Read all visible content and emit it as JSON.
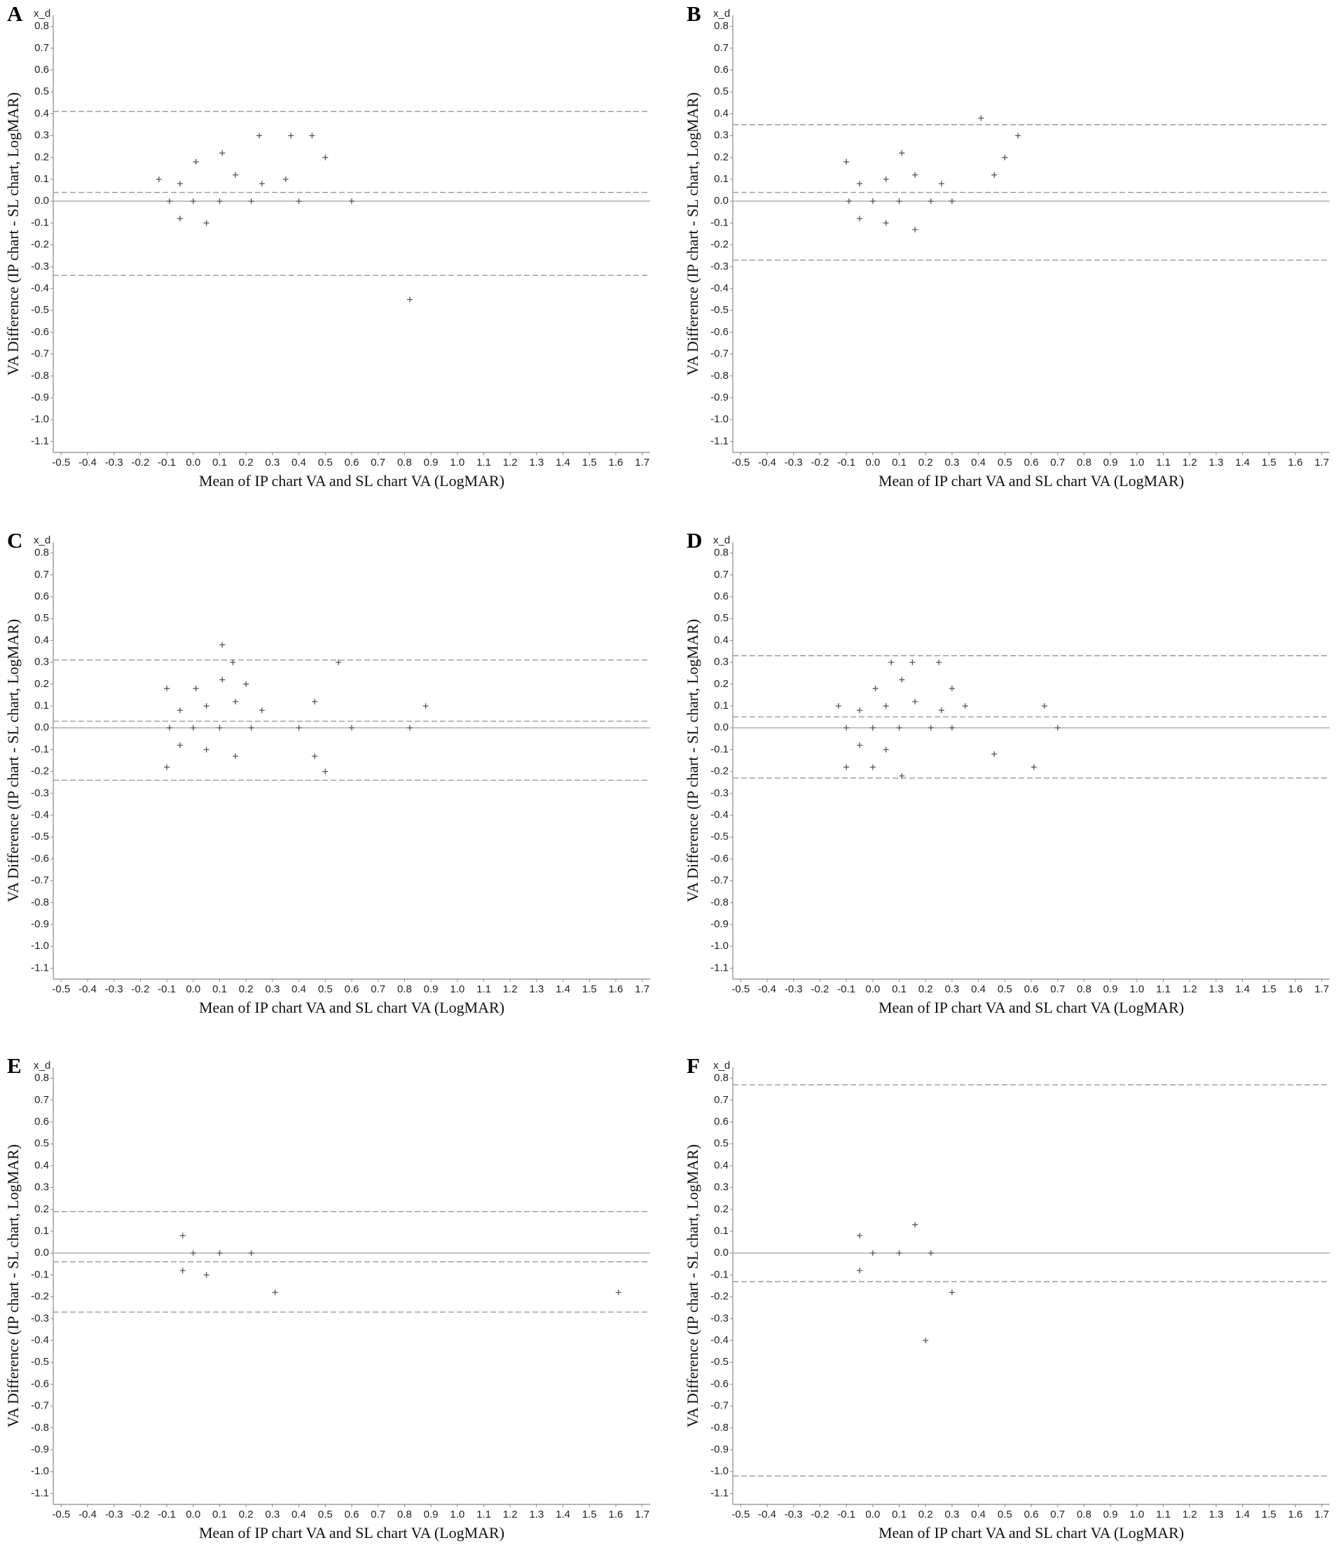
{
  "chart_data": [
    {
      "type": "scatter",
      "panel": "A",
      "corner_label": "x_d",
      "color": "#555555",
      "xlabel": "Mean of IP chart VA and SL chart VA (LogMAR)",
      "ylabel": "VA Difference (IP chart - SL chart, LogMAR)",
      "xlim": [
        -0.53,
        1.73
      ],
      "ylim": [
        -1.15,
        0.85
      ],
      "xticks": [
        -0.5,
        -0.4,
        -0.3,
        -0.2,
        -0.1,
        {
          "value": 0,
          "label": "0.0"
        },
        0.1,
        0.2,
        0.3,
        0.4,
        0.5,
        0.6,
        0.7,
        0.8,
        0.9,
        {
          "value": 1,
          "label": "1.0"
        },
        1.1,
        1.2,
        1.3,
        1.4,
        1.5,
        1.6,
        1.7
      ],
      "yticks": [
        0.8,
        0.7,
        0.6,
        0.5,
        0.4,
        0.3,
        0.2,
        0.1,
        {
          "value": 0,
          "label": "0.0"
        },
        -0.1,
        -0.2,
        -0.3,
        -0.4,
        -0.5,
        -0.6,
        -0.7,
        -0.8,
        -0.9,
        {
          "value": -1,
          "label": "-1.0"
        },
        -1.1
      ],
      "x": [
        -0.13,
        -0.09,
        -0.05,
        -0.05,
        0.0,
        0.01,
        0.05,
        0.1,
        0.11,
        0.16,
        0.22,
        0.25,
        0.26,
        0.35,
        0.37,
        0.4,
        0.45,
        0.5,
        0.6,
        0.82
      ],
      "y": [
        0.1,
        0,
        0.08,
        -0.08,
        0,
        0.18,
        -0.1,
        0,
        0.22,
        0.12,
        0,
        0.3,
        0.08,
        0.1,
        0.3,
        0,
        0.3,
        0.2,
        0,
        -0.45
      ],
      "reference_lines": [
        {
          "y": 0,
          "dashed": false
        },
        {
          "y": 0.41,
          "dashed": true
        },
        {
          "y": 0.04,
          "dashed": true
        },
        {
          "y": -0.34,
          "dashed": true
        }
      ]
    },
    {
      "type": "scatter",
      "panel": "B",
      "corner_label": "x_d",
      "color": "#555555",
      "xlabel": "Mean of IP chart VA and SL chart VA (LogMAR)",
      "ylabel": "VA Difference (IP chart - SL chart, LogMAR)",
      "xlim": [
        -0.53,
        1.73
      ],
      "ylim": [
        -1.15,
        0.85
      ],
      "xticks": [
        -0.5,
        -0.4,
        -0.3,
        -0.2,
        -0.1,
        {
          "value": 0,
          "label": "0.0"
        },
        0.1,
        0.2,
        0.3,
        0.4,
        0.5,
        0.6,
        0.7,
        0.8,
        0.9,
        {
          "value": 1,
          "label": "1.0"
        },
        1.1,
        1.2,
        1.3,
        1.4,
        1.5,
        1.6,
        1.7
      ],
      "yticks": [
        0.8,
        0.7,
        0.6,
        0.5,
        0.4,
        0.3,
        0.2,
        0.1,
        {
          "value": 0,
          "label": "0.0"
        },
        -0.1,
        -0.2,
        -0.3,
        -0.4,
        -0.5,
        -0.6,
        -0.7,
        -0.8,
        -0.9,
        {
          "value": -1,
          "label": "-1.0"
        },
        -1.1
      ],
      "x": [
        -0.1,
        -0.09,
        -0.05,
        -0.05,
        0.0,
        0.05,
        0.05,
        0.1,
        0.11,
        0.16,
        0.16,
        0.22,
        0.26,
        0.3,
        0.41,
        0.46,
        0.5,
        0.55
      ],
      "y": [
        0.18,
        0,
        0.08,
        -0.08,
        0,
        0.1,
        -0.1,
        0,
        0.22,
        0.12,
        -0.13,
        0,
        0.08,
        0,
        0.38,
        0.12,
        0.2,
        0.3
      ],
      "reference_lines": [
        {
          "y": 0,
          "dashed": false
        },
        {
          "y": 0.35,
          "dashed": true
        },
        {
          "y": 0.04,
          "dashed": true
        },
        {
          "y": -0.27,
          "dashed": true
        }
      ]
    },
    {
      "type": "scatter",
      "panel": "C",
      "corner_label": "x_d",
      "color": "#555555",
      "xlabel": "Mean of IP chart VA and SL chart VA (LogMAR)",
      "ylabel": "VA Difference (IP chart - SL chart, LogMAR)",
      "xlim": [
        -0.53,
        1.73
      ],
      "ylim": [
        -1.15,
        0.85
      ],
      "xticks": [
        -0.5,
        -0.4,
        -0.3,
        -0.2,
        -0.1,
        {
          "value": 0,
          "label": "0.0"
        },
        0.1,
        0.2,
        0.3,
        0.4,
        0.5,
        0.6,
        0.7,
        0.8,
        0.9,
        {
          "value": 1,
          "label": "1.0"
        },
        1.1,
        1.2,
        1.3,
        1.4,
        1.5,
        1.6,
        1.7
      ],
      "yticks": [
        0.8,
        0.7,
        0.6,
        0.5,
        0.4,
        0.3,
        0.2,
        0.1,
        {
          "value": 0,
          "label": "0.0"
        },
        -0.1,
        -0.2,
        -0.3,
        -0.4,
        -0.5,
        -0.6,
        -0.7,
        -0.8,
        -0.9,
        {
          "value": -1,
          "label": "-1.0"
        },
        -1.1
      ],
      "x": [
        -0.1,
        -0.09,
        -0.1,
        -0.05,
        -0.05,
        0.0,
        0.01,
        0.05,
        0.05,
        0.1,
        0.11,
        0.11,
        0.15,
        0.16,
        0.16,
        0.2,
        0.22,
        0.26,
        0.4,
        0.46,
        0.46,
        0.5,
        0.55,
        0.6,
        0.82,
        0.88
      ],
      "y": [
        0.18,
        0,
        -0.18,
        0.08,
        -0.08,
        0,
        0.18,
        0.1,
        -0.1,
        0,
        0.38,
        0.22,
        0.3,
        0.12,
        -0.13,
        0.2,
        0,
        0.08,
        0,
        0.12,
        -0.13,
        -0.2,
        0.3,
        0,
        0,
        0.1
      ],
      "reference_lines": [
        {
          "y": 0,
          "dashed": false
        },
        {
          "y": 0.31,
          "dashed": true
        },
        {
          "y": 0.03,
          "dashed": true
        },
        {
          "y": -0.24,
          "dashed": true
        }
      ]
    },
    {
      "type": "scatter",
      "panel": "D",
      "corner_label": "x_d",
      "color": "#555555",
      "xlabel": "Mean of IP chart VA and SL chart VA (LogMAR)",
      "ylabel": "VA Difference (IP chart - SL chart, LogMAR)",
      "xlim": [
        -0.53,
        1.73
      ],
      "ylim": [
        -1.15,
        0.85
      ],
      "xticks": [
        -0.5,
        -0.4,
        -0.3,
        -0.2,
        -0.1,
        {
          "value": 0,
          "label": "0.0"
        },
        0.1,
        0.2,
        0.3,
        0.4,
        0.5,
        0.6,
        0.7,
        0.8,
        0.9,
        {
          "value": 1,
          "label": "1.0"
        },
        1.1,
        1.2,
        1.3,
        1.4,
        1.5,
        1.6,
        1.7
      ],
      "yticks": [
        0.8,
        0.7,
        0.6,
        0.5,
        0.4,
        0.3,
        0.2,
        0.1,
        {
          "value": 0,
          "label": "0.0"
        },
        -0.1,
        -0.2,
        -0.3,
        -0.4,
        -0.5,
        -0.6,
        -0.7,
        -0.8,
        -0.9,
        {
          "value": -1,
          "label": "-1.0"
        },
        -1.1
      ],
      "x": [
        -0.13,
        -0.1,
        -0.1,
        -0.05,
        -0.05,
        0.0,
        0.01,
        0.0,
        0.05,
        0.05,
        0.07,
        0.1,
        0.11,
        0.11,
        0.15,
        0.16,
        0.22,
        0.25,
        0.26,
        0.3,
        0.3,
        0.35,
        0.46,
        0.61,
        0.65,
        0.7
      ],
      "y": [
        0.1,
        0,
        -0.18,
        0.08,
        -0.08,
        0,
        0.18,
        -0.18,
        0.1,
        -0.1,
        0.3,
        0,
        0.22,
        -0.22,
        0.3,
        0.12,
        0,
        0.3,
        0.08,
        0.18,
        0,
        0.1,
        -0.12,
        -0.18,
        0.1,
        0
      ],
      "reference_lines": [
        {
          "y": 0,
          "dashed": false
        },
        {
          "y": 0.33,
          "dashed": true
        },
        {
          "y": 0.05,
          "dashed": true
        },
        {
          "y": -0.23,
          "dashed": true
        }
      ]
    },
    {
      "type": "scatter",
      "panel": "E",
      "corner_label": "x_d",
      "color": "#555555",
      "xlabel": "Mean of IP chart VA and SL chart VA (LogMAR)",
      "ylabel": "VA Difference (IP chart - SL chart, LogMAR)",
      "xlim": [
        -0.53,
        1.73
      ],
      "ylim": [
        -1.15,
        0.85
      ],
      "xticks": [
        -0.5,
        -0.4,
        -0.3,
        -0.2,
        -0.1,
        {
          "value": 0,
          "label": "0.0"
        },
        0.1,
        0.2,
        0.3,
        0.4,
        0.5,
        0.6,
        0.7,
        0.8,
        0.9,
        {
          "value": 1,
          "label": "1.0"
        },
        1.1,
        1.2,
        1.3,
        1.4,
        1.5,
        1.6,
        1.7
      ],
      "yticks": [
        0.8,
        0.7,
        0.6,
        0.5,
        0.4,
        0.3,
        0.2,
        0.1,
        {
          "value": 0,
          "label": "0.0"
        },
        -0.1,
        -0.2,
        -0.3,
        -0.4,
        -0.5,
        -0.6,
        -0.7,
        -0.8,
        -0.9,
        {
          "value": -1,
          "label": "-1.0"
        },
        -1.1
      ],
      "x": [
        -0.04,
        -0.04,
        0.0,
        0.05,
        0.1,
        0.22,
        0.31,
        1.61
      ],
      "y": [
        0.08,
        -0.08,
        0,
        -0.1,
        0,
        0,
        -0.18,
        -0.18
      ],
      "reference_lines": [
        {
          "y": 0,
          "dashed": false
        },
        {
          "y": 0.19,
          "dashed": true
        },
        {
          "y": -0.04,
          "dashed": true
        },
        {
          "y": -0.27,
          "dashed": true
        }
      ]
    },
    {
      "type": "scatter",
      "panel": "F",
      "corner_label": "x_d",
      "color": "#555555",
      "xlabel": "Mean of IP chart VA and SL chart VA (LogMAR)",
      "ylabel": "VA Difference (IP chart - SL chart, LogMAR)",
      "xlim": [
        -0.53,
        1.73
      ],
      "ylim": [
        -1.15,
        0.85
      ],
      "xticks": [
        -0.5,
        -0.4,
        -0.3,
        -0.2,
        -0.1,
        {
          "value": 0,
          "label": "0.0"
        },
        0.1,
        0.2,
        0.3,
        0.4,
        0.5,
        0.6,
        0.7,
        0.8,
        0.9,
        {
          "value": 1,
          "label": "1.0"
        },
        1.1,
        1.2,
        1.3,
        1.4,
        1.5,
        1.6,
        1.7
      ],
      "yticks": [
        0.8,
        0.7,
        0.6,
        0.5,
        0.4,
        0.3,
        0.2,
        0.1,
        {
          "value": 0,
          "label": "0.0"
        },
        -0.1,
        -0.2,
        -0.3,
        -0.4,
        -0.5,
        -0.6,
        -0.7,
        -0.8,
        -0.9,
        {
          "value": -1,
          "label": "-1.0"
        },
        -1.1
      ],
      "x": [
        -0.05,
        -0.05,
        0.0,
        0.1,
        0.16,
        0.2,
        0.22,
        0.3
      ],
      "y": [
        0.08,
        -0.08,
        0,
        0,
        0.13,
        -0.4,
        0,
        -0.18
      ],
      "reference_lines": [
        {
          "y": 0,
          "dashed": false
        },
        {
          "y": 0.77,
          "dashed": true
        },
        {
          "y": -0.13,
          "dashed": true
        },
        {
          "y": -1.02,
          "dashed": true
        }
      ]
    }
  ]
}
